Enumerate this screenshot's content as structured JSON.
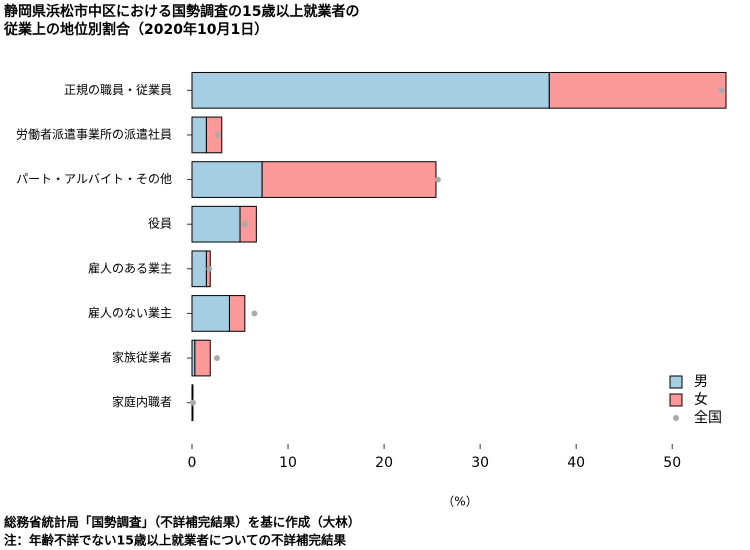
{
  "chart_data": {
    "type": "stacked-barh",
    "title": [
      "静岡県浜松市中区における国勢調査の15歳以上就業者の",
      "従業上の地位別割合（2020年10月1日）"
    ],
    "categories": [
      "正規の職員・従業員",
      "労働者派遣事業所の派遣社員",
      "パート・アルバイト・その他",
      "役員",
      "雇人のある業主",
      "雇人のない業主",
      "家族従業者",
      "家庭内職者"
    ],
    "series": [
      {
        "name": "男",
        "color": "#a6cee3",
        "values": [
          37.2,
          1.5,
          7.3,
          5.0,
          1.5,
          3.9,
          0.3,
          0.1
        ]
      },
      {
        "name": "女",
        "color": "#fb9a99",
        "values": [
          18.4,
          1.6,
          18.1,
          1.7,
          0.4,
          1.6,
          1.6,
          0.0
        ]
      }
    ],
    "points": {
      "name": "全国",
      "color": "#aaaaaa",
      "values": [
        55.1,
        2.7,
        25.6,
        5.5,
        1.8,
        6.5,
        2.6,
        0.1
      ]
    },
    "xlim": [
      0,
      55.6
    ],
    "xticks": [
      0,
      10,
      20,
      30,
      40,
      50
    ],
    "xlabel": "（%）",
    "notes": [
      "総務省統計局「国勢調査」（不詳補完結果）を基に作成（大林）",
      "注：年齢不詳でない15歳以上就業者についての不詳補完結果"
    ],
    "legend": "bottom-right"
  }
}
